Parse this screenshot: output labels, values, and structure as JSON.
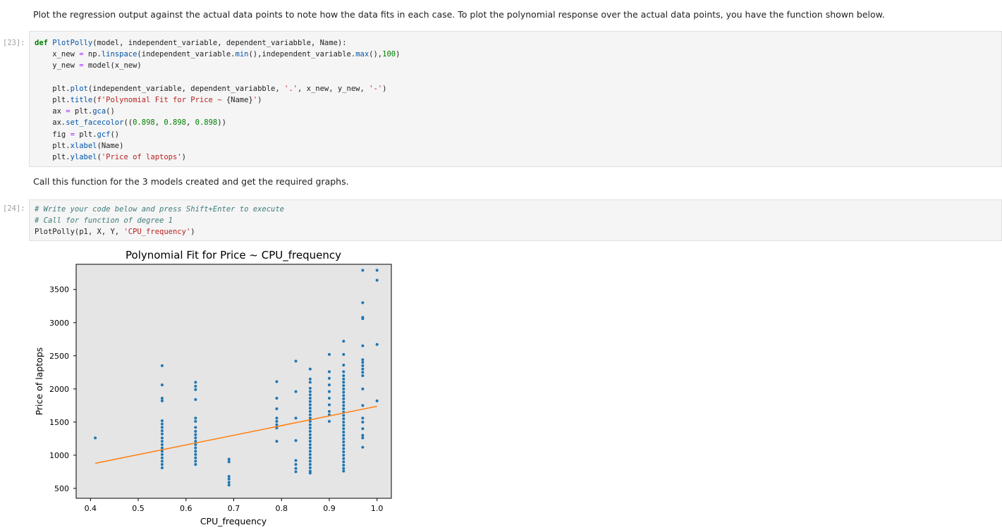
{
  "markdown": {
    "intro": "Plot the regression output against the actual data points to note how the data fits in each case. To plot the polynomial response over the actual data points, you have the function shown below.",
    "call_text": "Call this function for the 3 models created and get the required graphs."
  },
  "cells": {
    "c23": {
      "prompt": "[23]:",
      "lines": [
        {
          "parts": [
            {
              "t": "def ",
              "c": "kw"
            },
            {
              "t": "PlotPolly",
              "c": "fn"
            },
            {
              "t": "(model, independent_variable, dependent_variabble, Name):",
              "c": ""
            }
          ]
        },
        {
          "parts": [
            {
              "t": "    x_new ",
              "c": ""
            },
            {
              "t": "=",
              "c": "op"
            },
            {
              "t": " np.",
              "c": ""
            },
            {
              "t": "linspace",
              "c": "fn"
            },
            {
              "t": "(independent_variable.",
              "c": ""
            },
            {
              "t": "min",
              "c": "fn"
            },
            {
              "t": "(),independent_variable.",
              "c": ""
            },
            {
              "t": "max",
              "c": "fn"
            },
            {
              "t": "(),",
              "c": ""
            },
            {
              "t": "100",
              "c": "num"
            },
            {
              "t": ")",
              "c": ""
            }
          ]
        },
        {
          "parts": [
            {
              "t": "    y_new ",
              "c": ""
            },
            {
              "t": "=",
              "c": "op"
            },
            {
              "t": " model(x_new)",
              "c": ""
            }
          ]
        },
        {
          "parts": [
            {
              "t": "",
              "c": ""
            }
          ]
        },
        {
          "parts": [
            {
              "t": "    plt.",
              "c": ""
            },
            {
              "t": "plot",
              "c": "fn"
            },
            {
              "t": "(independent_variable, dependent_variabble, ",
              "c": ""
            },
            {
              "t": "'.'",
              "c": "str"
            },
            {
              "t": ", x_new, y_new, ",
              "c": ""
            },
            {
              "t": "'-'",
              "c": "str"
            },
            {
              "t": ")",
              "c": ""
            }
          ]
        },
        {
          "parts": [
            {
              "t": "    plt.",
              "c": ""
            },
            {
              "t": "title",
              "c": "fn"
            },
            {
              "t": "(",
              "c": ""
            },
            {
              "t": "f'Polynomial Fit for Price ~ ",
              "c": "str"
            },
            {
              "t": "{Name}",
              "c": ""
            },
            {
              "t": "'",
              "c": "str"
            },
            {
              "t": ")",
              "c": ""
            }
          ]
        },
        {
          "parts": [
            {
              "t": "    ax ",
              "c": ""
            },
            {
              "t": "=",
              "c": "op"
            },
            {
              "t": " plt.",
              "c": ""
            },
            {
              "t": "gca",
              "c": "fn"
            },
            {
              "t": "()",
              "c": ""
            }
          ]
        },
        {
          "parts": [
            {
              "t": "    ax.",
              "c": ""
            },
            {
              "t": "set_facecolor",
              "c": "fn"
            },
            {
              "t": "((",
              "c": ""
            },
            {
              "t": "0.898",
              "c": "num"
            },
            {
              "t": ", ",
              "c": ""
            },
            {
              "t": "0.898",
              "c": "num"
            },
            {
              "t": ", ",
              "c": ""
            },
            {
              "t": "0.898",
              "c": "num"
            },
            {
              "t": "))",
              "c": ""
            }
          ]
        },
        {
          "parts": [
            {
              "t": "    fig ",
              "c": ""
            },
            {
              "t": "=",
              "c": "op"
            },
            {
              "t": " plt.",
              "c": ""
            },
            {
              "t": "gcf",
              "c": "fn"
            },
            {
              "t": "()",
              "c": ""
            }
          ]
        },
        {
          "parts": [
            {
              "t": "    plt.",
              "c": ""
            },
            {
              "t": "xlabel",
              "c": "fn"
            },
            {
              "t": "(Name)",
              "c": ""
            }
          ]
        },
        {
          "parts": [
            {
              "t": "    plt.",
              "c": ""
            },
            {
              "t": "ylabel",
              "c": "fn"
            },
            {
              "t": "(",
              "c": ""
            },
            {
              "t": "'Price of laptops'",
              "c": "str"
            },
            {
              "t": ")",
              "c": ""
            }
          ]
        }
      ]
    },
    "c24": {
      "prompt": "[24]:",
      "lines": [
        {
          "parts": [
            {
              "t": "# Write your code below and press Shift+Enter to execute",
              "c": "cm"
            }
          ]
        },
        {
          "parts": [
            {
              "t": "# Call for function of degree 1",
              "c": "cm"
            }
          ]
        },
        {
          "parts": [
            {
              "t": "PlotPolly(p1, X, Y, ",
              "c": ""
            },
            {
              "t": "'CPU_frequency'",
              "c": "str"
            },
            {
              "t": ")",
              "c": ""
            }
          ]
        }
      ]
    }
  },
  "chart_data": {
    "type": "scatter",
    "title": "Polynomial Fit for Price ~ CPU_frequency",
    "xlabel": "CPU_frequency",
    "ylabel": "Price of laptops",
    "xlim": [
      0.37,
      1.03
    ],
    "ylim": [
      350,
      3880
    ],
    "x_ticks": [
      {
        "v": 0.4,
        "l": "0.4"
      },
      {
        "v": 0.5,
        "l": "0.5"
      },
      {
        "v": 0.6,
        "l": "0.6"
      },
      {
        "v": 0.7,
        "l": "0.7"
      },
      {
        "v": 0.8,
        "l": "0.8"
      },
      {
        "v": 0.9,
        "l": "0.9"
      },
      {
        "v": 1.0,
        "l": "1.0"
      }
    ],
    "y_ticks": [
      {
        "v": 500,
        "l": "500"
      },
      {
        "v": 1000,
        "l": "1000"
      },
      {
        "v": 1500,
        "l": "1500"
      },
      {
        "v": 2000,
        "l": "2000"
      },
      {
        "v": 2500,
        "l": "2500"
      },
      {
        "v": 3000,
        "l": "3000"
      },
      {
        "v": 3500,
        "l": "3500"
      }
    ],
    "facecolor": "#e5e5e5",
    "point_color": "#1f77b4",
    "line_color": "#ff7f0e",
    "series": [
      {
        "name": "data",
        "style": "points",
        "points": [
          [
            0.41,
            1260
          ],
          [
            0.55,
            2350
          ],
          [
            0.55,
            2060
          ],
          [
            0.55,
            1860
          ],
          [
            0.55,
            1820
          ],
          [
            0.55,
            1520
          ],
          [
            0.55,
            1470
          ],
          [
            0.55,
            1420
          ],
          [
            0.55,
            1370
          ],
          [
            0.55,
            1320
          ],
          [
            0.55,
            1260
          ],
          [
            0.55,
            1210
          ],
          [
            0.55,
            1160
          ],
          [
            0.55,
            1110
          ],
          [
            0.55,
            1060
          ],
          [
            0.55,
            1010
          ],
          [
            0.55,
            960
          ],
          [
            0.55,
            910
          ],
          [
            0.55,
            860
          ],
          [
            0.55,
            810
          ],
          [
            0.62,
            2100
          ],
          [
            0.62,
            2040
          ],
          [
            0.62,
            1990
          ],
          [
            0.62,
            1840
          ],
          [
            0.62,
            1560
          ],
          [
            0.62,
            1510
          ],
          [
            0.62,
            1420
          ],
          [
            0.62,
            1360
          ],
          [
            0.62,
            1310
          ],
          [
            0.62,
            1260
          ],
          [
            0.62,
            1210
          ],
          [
            0.62,
            1160
          ],
          [
            0.62,
            1110
          ],
          [
            0.62,
            1060
          ],
          [
            0.62,
            1010
          ],
          [
            0.62,
            960
          ],
          [
            0.62,
            910
          ],
          [
            0.62,
            860
          ],
          [
            0.69,
            940
          ],
          [
            0.69,
            900
          ],
          [
            0.69,
            680
          ],
          [
            0.69,
            640
          ],
          [
            0.69,
            590
          ],
          [
            0.69,
            550
          ],
          [
            0.79,
            2110
          ],
          [
            0.79,
            1860
          ],
          [
            0.79,
            1700
          ],
          [
            0.79,
            1560
          ],
          [
            0.79,
            1510
          ],
          [
            0.79,
            1460
          ],
          [
            0.79,
            1410
          ],
          [
            0.79,
            1210
          ],
          [
            0.83,
            2420
          ],
          [
            0.83,
            1960
          ],
          [
            0.83,
            1560
          ],
          [
            0.83,
            1220
          ],
          [
            0.83,
            920
          ],
          [
            0.83,
            860
          ],
          [
            0.83,
            800
          ],
          [
            0.83,
            750
          ],
          [
            0.86,
            2300
          ],
          [
            0.86,
            2150
          ],
          [
            0.86,
            2100
          ],
          [
            0.86,
            2010
          ],
          [
            0.86,
            1960
          ],
          [
            0.86,
            1910
          ],
          [
            0.86,
            1860
          ],
          [
            0.86,
            1810
          ],
          [
            0.86,
            1760
          ],
          [
            0.86,
            1710
          ],
          [
            0.86,
            1660
          ],
          [
            0.86,
            1610
          ],
          [
            0.86,
            1560
          ],
          [
            0.86,
            1510
          ],
          [
            0.86,
            1460
          ],
          [
            0.86,
            1410
          ],
          [
            0.86,
            1360
          ],
          [
            0.86,
            1310
          ],
          [
            0.86,
            1260
          ],
          [
            0.86,
            1210
          ],
          [
            0.86,
            1160
          ],
          [
            0.86,
            1110
          ],
          [
            0.86,
            1060
          ],
          [
            0.86,
            1010
          ],
          [
            0.86,
            960
          ],
          [
            0.86,
            910
          ],
          [
            0.86,
            860
          ],
          [
            0.86,
            810
          ],
          [
            0.86,
            760
          ],
          [
            0.86,
            730
          ],
          [
            0.9,
            2520
          ],
          [
            0.9,
            2260
          ],
          [
            0.9,
            2160
          ],
          [
            0.9,
            2060
          ],
          [
            0.9,
            1960
          ],
          [
            0.9,
            1860
          ],
          [
            0.9,
            1760
          ],
          [
            0.9,
            1660
          ],
          [
            0.9,
            1610
          ],
          [
            0.9,
            1510
          ],
          [
            0.93,
            2720
          ],
          [
            0.93,
            2520
          ],
          [
            0.93,
            2360
          ],
          [
            0.93,
            2260
          ],
          [
            0.93,
            2200
          ],
          [
            0.93,
            2150
          ],
          [
            0.93,
            2100
          ],
          [
            0.93,
            2050
          ],
          [
            0.93,
            2000
          ],
          [
            0.93,
            1950
          ],
          [
            0.93,
            1900
          ],
          [
            0.93,
            1850
          ],
          [
            0.93,
            1800
          ],
          [
            0.93,
            1750
          ],
          [
            0.93,
            1700
          ],
          [
            0.93,
            1650
          ],
          [
            0.93,
            1600
          ],
          [
            0.93,
            1550
          ],
          [
            0.93,
            1500
          ],
          [
            0.93,
            1450
          ],
          [
            0.93,
            1400
          ],
          [
            0.93,
            1350
          ],
          [
            0.93,
            1300
          ],
          [
            0.93,
            1250
          ],
          [
            0.93,
            1200
          ],
          [
            0.93,
            1150
          ],
          [
            0.93,
            1100
          ],
          [
            0.93,
            1050
          ],
          [
            0.93,
            1000
          ],
          [
            0.93,
            950
          ],
          [
            0.93,
            900
          ],
          [
            0.93,
            850
          ],
          [
            0.93,
            800
          ],
          [
            0.93,
            760
          ],
          [
            0.97,
            3790
          ],
          [
            0.97,
            3300
          ],
          [
            0.97,
            3080
          ],
          [
            0.97,
            3060
          ],
          [
            0.97,
            2650
          ],
          [
            0.97,
            2440
          ],
          [
            0.97,
            2400
          ],
          [
            0.97,
            2350
          ],
          [
            0.97,
            2300
          ],
          [
            0.97,
            2250
          ],
          [
            0.97,
            2200
          ],
          [
            0.97,
            2000
          ],
          [
            0.97,
            1750
          ],
          [
            0.97,
            1560
          ],
          [
            0.97,
            1500
          ],
          [
            0.97,
            1400
          ],
          [
            0.97,
            1300
          ],
          [
            0.97,
            1260
          ],
          [
            0.97,
            1120
          ],
          [
            1.0,
            3790
          ],
          [
            1.0,
            3640
          ],
          [
            1.0,
            2670
          ],
          [
            1.0,
            1820
          ]
        ]
      },
      {
        "name": "fit",
        "style": "line",
        "points": [
          [
            0.41,
            878
          ],
          [
            1.0,
            1738
          ]
        ]
      }
    ]
  }
}
